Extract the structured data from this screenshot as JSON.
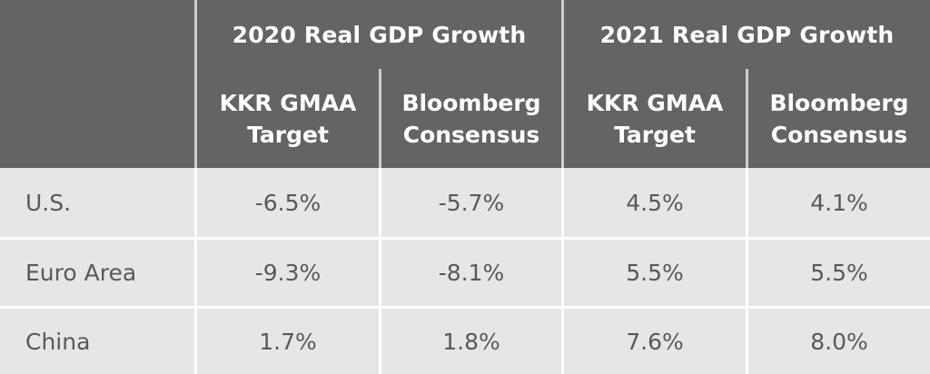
{
  "groups": [
    {
      "title": "2020 Real GDP Growth"
    },
    {
      "title": "2021 Real GDP Growth"
    }
  ],
  "subheaders": [
    {
      "line1": "KKR GMAA",
      "line2": "Target"
    },
    {
      "line1": "Bloomberg",
      "line2": "Consensus"
    },
    {
      "line1": "KKR GMAA",
      "line2": "Target"
    },
    {
      "line1": "Bloomberg",
      "line2": "Consensus"
    }
  ],
  "rows": [
    {
      "label": "U.S.",
      "values": [
        "-6.5%",
        "-5.7%",
        "4.5%",
        "4.1%"
      ]
    },
    {
      "label": "Euro Area",
      "values": [
        "-9.3%",
        "-8.1%",
        "5.5%",
        "5.5%"
      ]
    },
    {
      "label": "China",
      "values": [
        "1.7%",
        "1.8%",
        "7.6%",
        "8.0%"
      ]
    }
  ],
  "colors": {
    "header_bg": "#636466",
    "row_bg": "#e6e6e6",
    "text_dark": "#58595b",
    "text_light": "#ffffff"
  }
}
